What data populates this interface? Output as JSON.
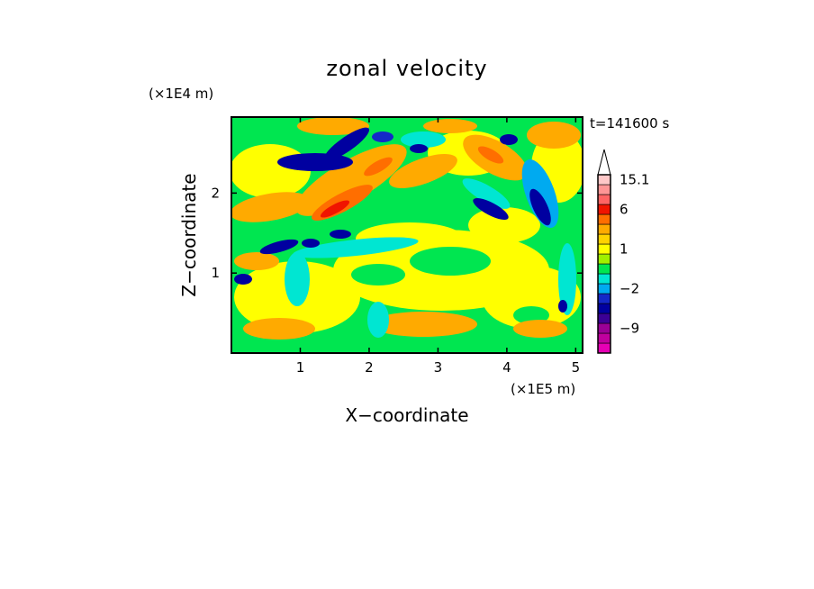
{
  "chart_data": {
    "type": "heatmap",
    "title": "zonal velocity",
    "xlabel": "X−coordinate",
    "ylabel": "Z−coordinate",
    "x_unit": "(×1E5 m)",
    "y_unit": "(×1E4 m)",
    "time_label": "t=141600 s",
    "x_ticks": [
      "1",
      "2",
      "3",
      "4",
      "5"
    ],
    "y_ticks": [
      "1",
      "2"
    ],
    "xlim": [
      0,
      5.1
    ],
    "ylim": [
      0,
      2.95
    ],
    "colorbar": {
      "tick_labels": [
        "15.1",
        "6",
        "1",
        "−2",
        "−9"
      ],
      "levels": [
        {
          "value": -14,
          "color": "#e600b4"
        },
        {
          "value": -11,
          "color": "#c0009e"
        },
        {
          "value": -9,
          "color": "#9a0096"
        },
        {
          "value": -6,
          "color": "#3c0096"
        },
        {
          "value": -4,
          "color": "#0000a0"
        },
        {
          "value": -3,
          "color": "#1428c8"
        },
        {
          "value": -2,
          "color": "#00aaf0"
        },
        {
          "value": -1,
          "color": "#00e6d2"
        },
        {
          "value": 0,
          "color": "#00e650"
        },
        {
          "value": 0.5,
          "color": "#a0f000"
        },
        {
          "value": 1,
          "color": "#ffff00"
        },
        {
          "value": 1.5,
          "color": "#ffd200"
        },
        {
          "value": 2,
          "color": "#ffaa00"
        },
        {
          "value": 4,
          "color": "#ff6e00"
        },
        {
          "value": 6,
          "color": "#f01400"
        },
        {
          "value": 9,
          "color": "#ff6464"
        },
        {
          "value": 12,
          "color": "#ff9696"
        },
        {
          "value": 15.1,
          "color": "#ffc8c8"
        }
      ],
      "overflow_color": "#ffffff"
    },
    "colors": {
      "background": "#ffffff",
      "field_base": "#00e650",
      "yellow": "#ffff00",
      "orange": "#ffaa00",
      "dark_orange": "#ff6e00",
      "red": "#f01400",
      "cyan": "#00e6d2",
      "light_blue": "#00aaf0",
      "navy": "#0000a0",
      "blue": "#1428c8"
    }
  }
}
